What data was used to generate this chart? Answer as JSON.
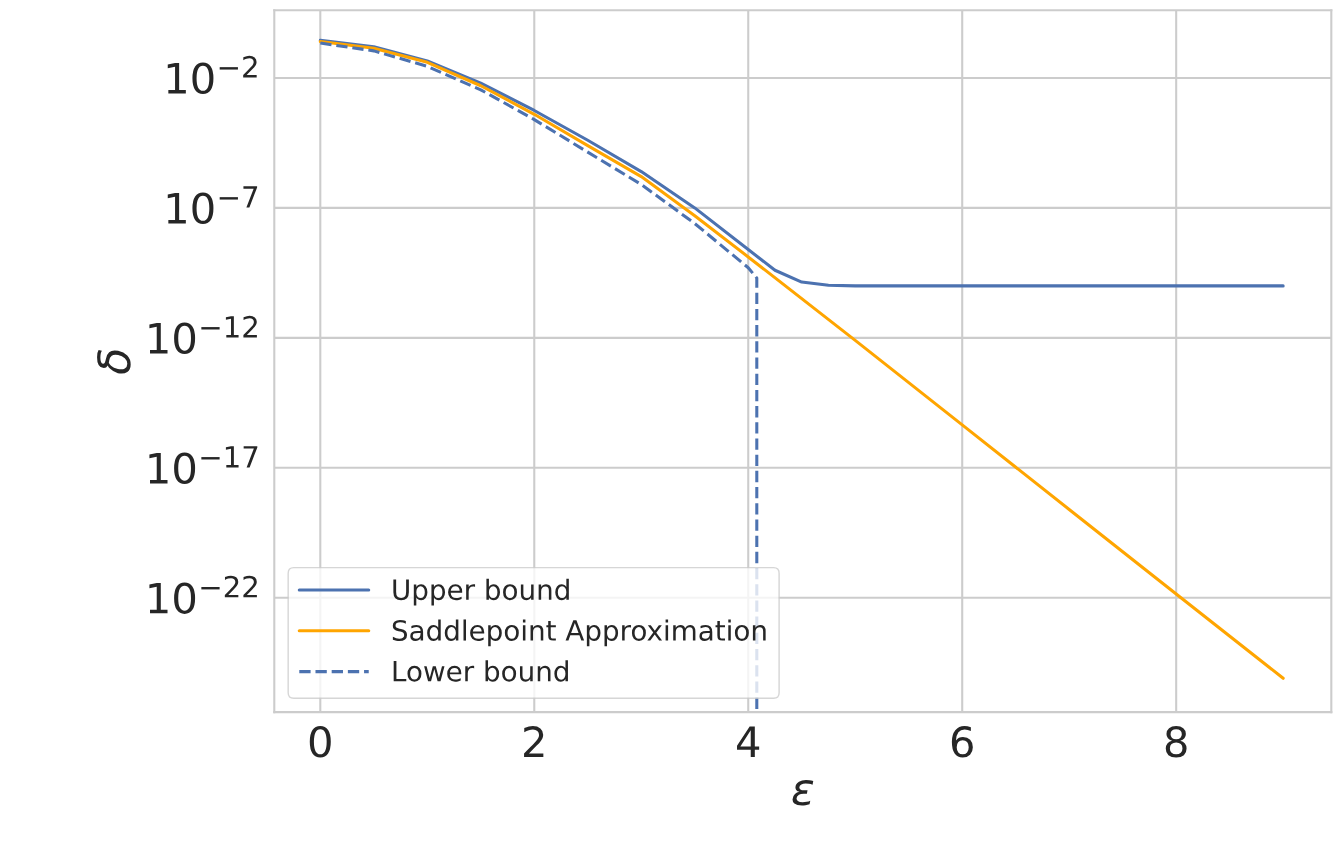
{
  "chart_data": {
    "type": "line",
    "xlabel": "ε",
    "ylabel": "δ",
    "log": "y",
    "grid": true,
    "legend": "bottom left",
    "xlim": [
      -0.43,
      9.45
    ],
    "xticks": [
      0,
      2,
      4,
      6,
      8
    ],
    "ylim": [
      4e-27,
      4
    ],
    "yticks": [
      {
        "value": 0.01,
        "label": "10$^{−2}$"
      },
      {
        "value": 1e-07,
        "label": "10$^{−7}$"
      },
      {
        "value": 1e-12,
        "label": "10$^{−12}$"
      },
      {
        "value": 1e-17,
        "label": "10$^{−17}$"
      },
      {
        "value": 1e-22,
        "label": "10$^{−22}$"
      }
    ],
    "series": [
      {
        "name": "Upper bound",
        "color": "#4c72b0",
        "line_style": "solid",
        "x": [
          0,
          0.5,
          1,
          1.5,
          2,
          2.5,
          3,
          3.5,
          4,
          4.25,
          4.5,
          4.75,
          5,
          9
        ],
        "values": [
          0.28,
          0.16,
          0.045,
          0.0063,
          0.00056,
          4e-05,
          2.5e-06,
          1e-07,
          2.5e-09,
          4e-10,
          1.4e-10,
          1.05e-10,
          1e-10,
          1e-10
        ]
      },
      {
        "name": "Saddlepoint Approximation",
        "color": "#ffa500",
        "line_style": "solid",
        "x": [
          0,
          0.5,
          1,
          1.5,
          2,
          2.5,
          3,
          3.5,
          4,
          5,
          6,
          7,
          8,
          9
        ],
        "values": [
          0.25,
          0.14,
          0.04,
          0.005,
          0.0004,
          2.5e-05,
          1.6e-06,
          5e-08,
          1.3e-09,
          8e-13,
          4.5e-16,
          2.5e-19,
          1.4e-22,
          8e-26
        ]
      },
      {
        "name": "Lower bound",
        "color": "#4c72b0",
        "line_style": "dashed",
        "x": [
          0,
          0.5,
          1,
          1.5,
          2,
          2.5,
          3,
          3.5,
          4,
          4.08,
          4.08
        ],
        "values": [
          0.22,
          0.11,
          0.028,
          0.0035,
          0.00025,
          1.4e-05,
          8e-07,
          2.5e-08,
          5e-10,
          2e-10,
          5e-27
        ]
      }
    ]
  }
}
